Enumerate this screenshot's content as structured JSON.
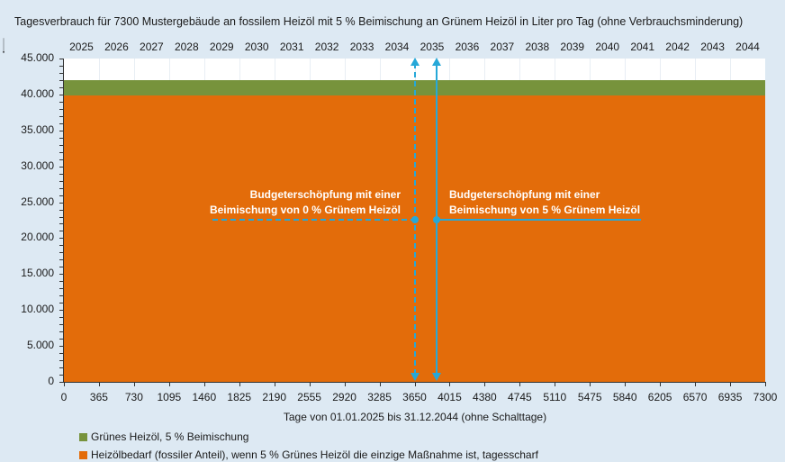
{
  "chart_data": {
    "type": "area",
    "title": "Tagesverbrauch für 7300 Mustergebäude an fossilem Heizöl mit 5 % Beimischung an Grünem Heizöl in Liter pro Tag (ohne Verbrauchsminderung)",
    "xlabel": "Tage von 01.01.2025 bis 31.12.2044  (ohne Schalttage)",
    "ylabel": "",
    "xlim": [
      0,
      7300
    ],
    "ylim": [
      0,
      45000
    ],
    "x_ticks": [
      "0",
      "365",
      "730",
      "1095",
      "1460",
      "1825",
      "2190",
      "2555",
      "2920",
      "3285",
      "3650",
      "4015",
      "4380",
      "4745",
      "5110",
      "5475",
      "5840",
      "6205",
      "6570",
      "6935",
      "7300"
    ],
    "y_ticks": [
      "0",
      "5.000",
      "10.000",
      "15.000",
      "20.000",
      "25.000",
      "30.000",
      "35.000",
      "40.000",
      "45.000"
    ],
    "secondary_x_ticks": [
      "2025",
      "2026",
      "2027",
      "2028",
      "2029",
      "2030",
      "2031",
      "2032",
      "2033",
      "2034",
      "2035",
      "2036",
      "2037",
      "2038",
      "2039",
      "2040",
      "2041",
      "2042",
      "2043",
      "2044"
    ],
    "stacked": true,
    "series": [
      {
        "name": "Heizölbedarf (fossiler Anteil), wenn 5 % Grünes Heizöl die einzige Maßnahme ist, tagesscharf",
        "color": "#e36c0a",
        "x": [
          0,
          7300
        ],
        "values": [
          39800,
          39800
        ]
      },
      {
        "name": "Grünes Heizöl, 5 % Beimischung",
        "color": "#77933c",
        "x": [
          0,
          7300
        ],
        "values": [
          2100,
          2100
        ]
      }
    ],
    "annotations": [
      {
        "text_line1": "Budgeterschöpfung mit einer",
        "text_line2": "Beimischung von 0 % Grünem Heizöl",
        "x": 3650,
        "y": 22500,
        "style": "dashed",
        "color": "#26a8d8"
      },
      {
        "text_line1": "Budgeterschöpfung mit einer",
        "text_line2": "Beimischung von 5 % Grünem Heizöl",
        "x": 3880,
        "y": 22500,
        "style": "solid",
        "color": "#26a8d8"
      }
    ],
    "legend_position": "bottom-left",
    "grid": "vertical"
  },
  "colors": {
    "background": "#dde9f3",
    "fossil": "#e36c0a",
    "green": "#77933c",
    "marker": "#26a8d8"
  }
}
